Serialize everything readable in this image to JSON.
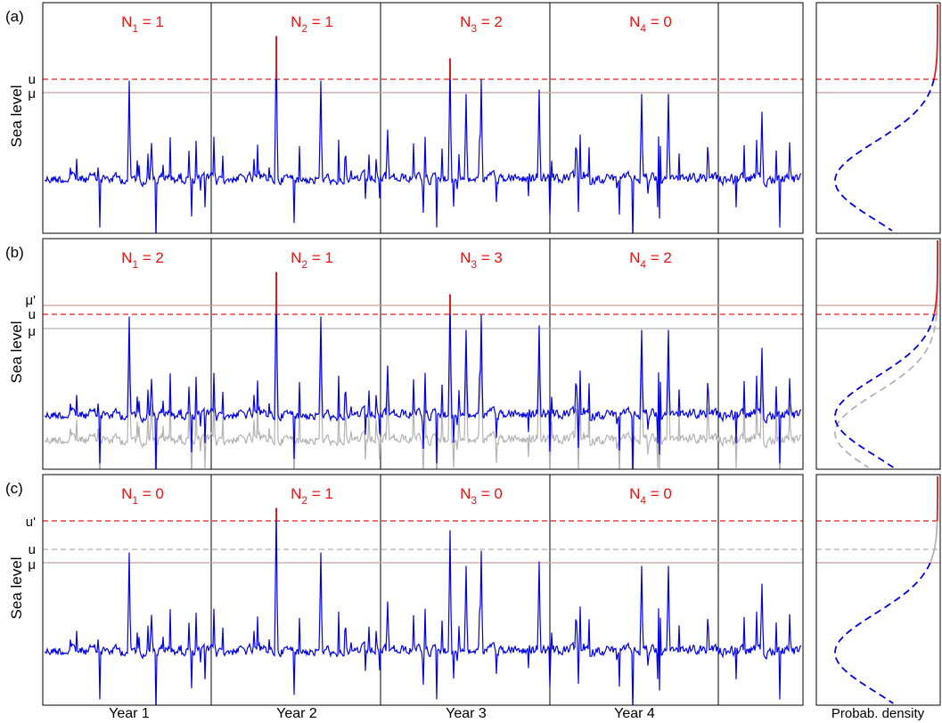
{
  "chart_data": [
    {
      "type": "line",
      "panel_label": "(a)",
      "ylabel": "Sea level",
      "thresholds": [
        {
          "label": "u",
          "style": "dashed",
          "color": "#e41a1c"
        },
        {
          "label": "μ",
          "style": "solid",
          "color": "#c8a09a"
        }
      ],
      "year_counts": [
        "N1 = 1",
        "N2 = 1",
        "N3 = 2",
        "N4 = 0"
      ],
      "series": [
        {
          "color": "#0000ee",
          "exceed_color": "#e41a1c"
        }
      ],
      "density": {
        "xlabel": "",
        "tail_color": "#e41a1c",
        "body_color": "#0000ee"
      }
    },
    {
      "type": "line",
      "panel_label": "(b)",
      "ylabel": "Sea level",
      "thresholds": [
        {
          "label": "μ'",
          "style": "solid",
          "color": "#c8a09a"
        },
        {
          "label": "u",
          "style": "dashed",
          "color": "#e41a1c"
        },
        {
          "label": "μ",
          "style": "solid",
          "color": "#b0b0b0"
        }
      ],
      "year_counts": [
        "N1 = 2",
        "N2 = 1",
        "N3 = 3",
        "N4 = 2"
      ],
      "series": [
        {
          "color": "#0000ee",
          "exceed_color": "#e41a1c"
        },
        {
          "color": "#b3b3b3"
        }
      ],
      "density": {
        "xlabel": "",
        "tail_color": "#e41a1c",
        "body_color": "#0000ee",
        "reference_color": "#b3b3b3"
      }
    },
    {
      "type": "line",
      "panel_label": "(c)",
      "ylabel": "Sea level",
      "thresholds": [
        {
          "label": "u'",
          "style": "dashed",
          "color": "#e41a1c"
        },
        {
          "label": "u",
          "style": "dashed",
          "color": "#b0b0b0"
        },
        {
          "label": "μ",
          "style": "solid",
          "color": "#c8a09a"
        }
      ],
      "year_counts": [
        "N1 = 0",
        "N2 = 1",
        "N3 = 0",
        "N4 = 0"
      ],
      "series": [
        {
          "color": "#0000ee",
          "exceed_color": "#e41a1c"
        }
      ],
      "density": {
        "xlabel": "Probab. density",
        "tail_color": "#e41a1c",
        "body_color": "#0000ee"
      }
    }
  ],
  "x_axis": {
    "tick_labels": [
      "Year 1",
      "Year 2",
      "Year 3",
      "Year 4"
    ]
  }
}
